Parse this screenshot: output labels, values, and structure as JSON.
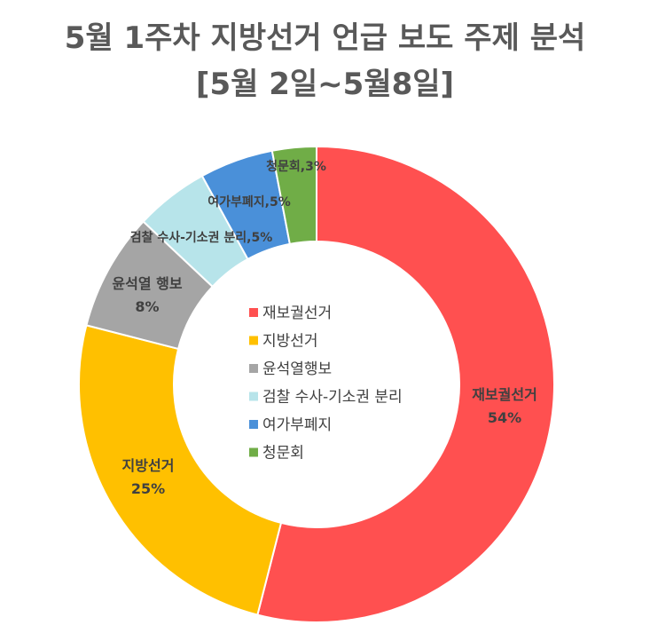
{
  "title": {
    "line1": "5월 1주차 지방선거 언급 보도 주제 분석",
    "line2": "[5월 2일~5월8일]"
  },
  "chart_data": {
    "type": "pie",
    "donut": true,
    "slices": [
      {
        "name": "재보궐선거",
        "value": 54,
        "color": "#FF5050",
        "label": [
          "재보궐선거",
          "54%"
        ]
      },
      {
        "name": "지방선거",
        "value": 25,
        "color": "#FFC000",
        "label": [
          "지방선거",
          "25%"
        ]
      },
      {
        "name": "윤석열행보",
        "value": 8,
        "color": "#A5A5A5",
        "label": [
          "윤석열 행보",
          "8%"
        ]
      },
      {
        "name": "검찰 수사-기소권 분리",
        "value": 5,
        "color": "#B7E4EA",
        "label": [
          "검찰 수사-기소권 분리,5%"
        ]
      },
      {
        "name": "여가부폐지",
        "value": 5,
        "color": "#4A90D9",
        "label": [
          "여가부폐지,5%"
        ]
      },
      {
        "name": "청문회",
        "value": 3,
        "color": "#70AD47",
        "label": [
          "청문회,3%"
        ]
      }
    ],
    "legend": {
      "placement": "center",
      "entries": [
        "재보궐선거",
        "지방선거",
        "윤석열행보",
        "검찰 수사-기소권 분리",
        "여가부폐지",
        "청문회"
      ]
    }
  }
}
